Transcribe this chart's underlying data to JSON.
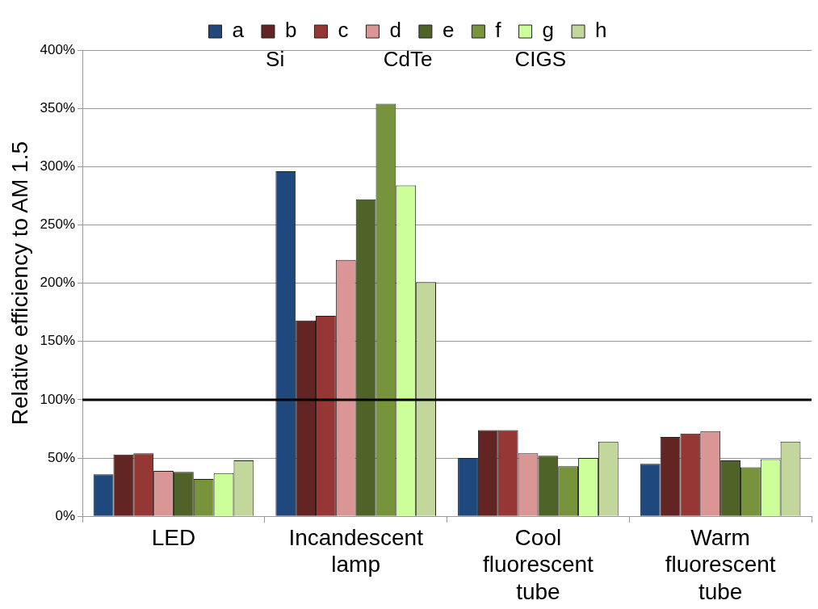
{
  "chart_data": {
    "type": "bar",
    "ylabel": "Relative efficiency to AM 1.5",
    "categories": [
      "LED",
      "Incandescent lamp",
      "Cool fluorescent tube",
      "Warm fluorescent tube"
    ],
    "series": [
      {
        "name": "a",
        "color": "#1f497d",
        "values": [
          36,
          296,
          50,
          45
        ]
      },
      {
        "name": "b",
        "color": "#632523",
        "values": [
          53,
          168,
          74,
          68
        ]
      },
      {
        "name": "c",
        "color": "#953735",
        "values": [
          54,
          172,
          74,
          71
        ]
      },
      {
        "name": "d",
        "color": "#d99694",
        "values": [
          39,
          220,
          54,
          73
        ]
      },
      {
        "name": "e",
        "color": "#4f6228",
        "values": [
          38,
          272,
          52,
          48
        ]
      },
      {
        "name": "f",
        "color": "#77933c",
        "values": [
          32,
          354,
          43,
          42
        ]
      },
      {
        "name": "g",
        "color": "#ccff99",
        "values": [
          37,
          284,
          50,
          49
        ]
      },
      {
        "name": "h",
        "color": "#c3d69b",
        "values": [
          48,
          201,
          64,
          64
        ]
      }
    ],
    "ylim": [
      0,
      400
    ],
    "yticks": [
      {
        "value": 0,
        "label": "0%"
      },
      {
        "value": 50,
        "label": "50%"
      },
      {
        "value": 100,
        "label": "100%"
      },
      {
        "value": 150,
        "label": "150%"
      },
      {
        "value": 200,
        "label": "200%"
      },
      {
        "value": 250,
        "label": "250%"
      },
      {
        "value": 300,
        "label": "300%"
      },
      {
        "value": 350,
        "label": "350%"
      },
      {
        "value": 400,
        "label": "400%"
      }
    ],
    "ref_lines": [
      {
        "axis": "y",
        "value": 100,
        "color": "#000000"
      }
    ],
    "annotations": [
      "Si",
      "CdTe",
      "CIGS"
    ],
    "grid": "y",
    "legend": "top"
  }
}
